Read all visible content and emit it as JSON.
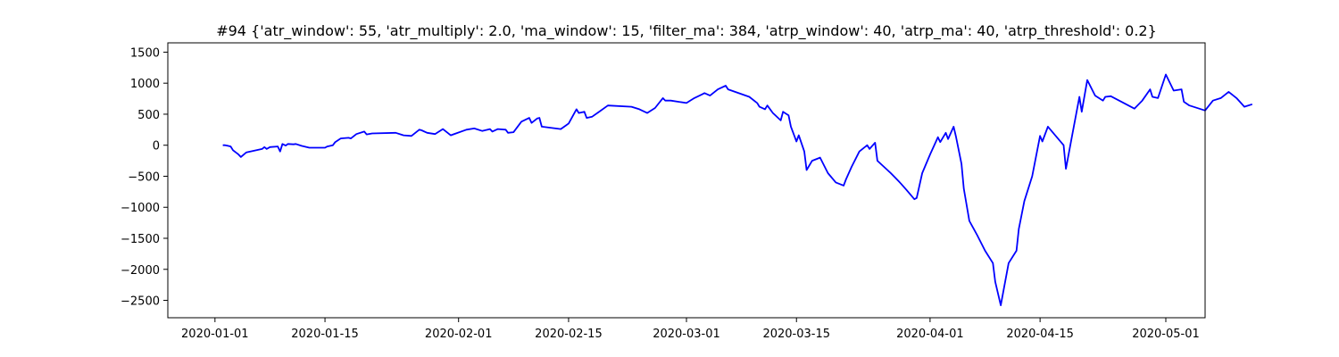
{
  "chart_data": {
    "type": "line",
    "title": "#94 {'atr_window': 55, 'atr_multiply': 2.0, 'ma_window': 15, 'filter_ma': 384, 'atrp_window': 40, 'atrp_ma': 40, 'atrp_threshold': 0.2}",
    "xlabel": "",
    "ylabel": "",
    "x_axis": {
      "type": "date",
      "range": [
        "2019-12-26",
        "2020-05-06"
      ],
      "ticks": [
        "2020-01-01",
        "2020-01-15",
        "2020-02-01",
        "2020-02-15",
        "2020-03-01",
        "2020-03-15",
        "2020-04-01",
        "2020-04-15",
        "2020-05-01"
      ]
    },
    "y_axis": {
      "range": [
        -2780,
        1650
      ],
      "ticks": [
        -2500,
        -2000,
        -1500,
        -1000,
        -500,
        0,
        500,
        1000,
        1500
      ]
    },
    "grid": false,
    "legend": "none",
    "series": [
      {
        "color": "#0000ff",
        "points": [
          [
            "2020-01-02",
            0
          ],
          [
            "2020-01-02",
            0
          ],
          [
            "2020-01-03",
            -20
          ],
          [
            "2020-01-03",
            -80
          ],
          [
            "2020-01-04",
            -150
          ],
          [
            "2020-01-04",
            -190
          ],
          [
            "2020-01-05",
            -115
          ],
          [
            "2020-01-07",
            -60
          ],
          [
            "2020-01-07",
            -30
          ],
          [
            "2020-01-07",
            -60
          ],
          [
            "2020-01-08",
            -30
          ],
          [
            "2020-01-09",
            -20
          ],
          [
            "2020-01-09",
            -100
          ],
          [
            "2020-01-09",
            20
          ],
          [
            "2020-01-10",
            -5
          ],
          [
            "2020-01-10",
            20
          ],
          [
            "2020-01-11",
            15
          ],
          [
            "2020-01-11",
            20
          ],
          [
            "2020-01-12",
            -10
          ],
          [
            "2020-01-13",
            -40
          ],
          [
            "2020-01-14",
            -40
          ],
          [
            "2020-01-15",
            -40
          ],
          [
            "2020-01-15",
            -20
          ],
          [
            "2020-01-16",
            0
          ],
          [
            "2020-01-16",
            50
          ],
          [
            "2020-01-17",
            110
          ],
          [
            "2020-01-18",
            120
          ],
          [
            "2020-01-18",
            110
          ],
          [
            "2020-01-19",
            180
          ],
          [
            "2020-01-20",
            220
          ],
          [
            "2020-01-20",
            175
          ],
          [
            "2020-01-21",
            190
          ],
          [
            "2020-01-24",
            200
          ],
          [
            "2020-01-25",
            160
          ],
          [
            "2020-01-26",
            150
          ],
          [
            "2020-01-27",
            250
          ],
          [
            "2020-01-27",
            240
          ],
          [
            "2020-01-28",
            200
          ],
          [
            "2020-01-29",
            180
          ],
          [
            "2020-01-30",
            260
          ],
          [
            "2020-01-31",
            160
          ],
          [
            "2020-02-02",
            250
          ],
          [
            "2020-02-03",
            270
          ],
          [
            "2020-02-04",
            230
          ],
          [
            "2020-02-05",
            260
          ],
          [
            "2020-02-05",
            220
          ],
          [
            "2020-02-06",
            260
          ],
          [
            "2020-02-07",
            250
          ],
          [
            "2020-02-07",
            200
          ],
          [
            "2020-02-08",
            210
          ],
          [
            "2020-02-09",
            380
          ],
          [
            "2020-02-10",
            440
          ],
          [
            "2020-02-10",
            360
          ],
          [
            "2020-02-11",
            430
          ],
          [
            "2020-02-11",
            440
          ],
          [
            "2020-02-11",
            300
          ],
          [
            "2020-02-14",
            260
          ],
          [
            "2020-02-15",
            350
          ],
          [
            "2020-02-16",
            580
          ],
          [
            "2020-02-16",
            520
          ],
          [
            "2020-02-17",
            540
          ],
          [
            "2020-02-17",
            440
          ],
          [
            "2020-02-18",
            460
          ],
          [
            "2020-02-19",
            550
          ],
          [
            "2020-02-20",
            640
          ],
          [
            "2020-02-23",
            620
          ],
          [
            "2020-02-24",
            580
          ],
          [
            "2020-02-25",
            520
          ],
          [
            "2020-02-26",
            600
          ],
          [
            "2020-02-27",
            760
          ],
          [
            "2020-02-27",
            720
          ],
          [
            "2020-02-28",
            720
          ],
          [
            "2020-03-01",
            680
          ],
          [
            "2020-03-02",
            760
          ],
          [
            "2020-03-03",
            820
          ],
          [
            "2020-03-03",
            840
          ],
          [
            "2020-03-04",
            800
          ],
          [
            "2020-03-05",
            900
          ],
          [
            "2020-03-06",
            960
          ],
          [
            "2020-03-06",
            900
          ],
          [
            "2020-03-09",
            780
          ],
          [
            "2020-03-10",
            680
          ],
          [
            "2020-03-10",
            620
          ],
          [
            "2020-03-11",
            580
          ],
          [
            "2020-03-11",
            640
          ],
          [
            "2020-03-12",
            520
          ],
          [
            "2020-03-13",
            400
          ],
          [
            "2020-03-13",
            540
          ],
          [
            "2020-03-14",
            480
          ],
          [
            "2020-03-14",
            300
          ],
          [
            "2020-03-15",
            60
          ],
          [
            "2020-03-15",
            160
          ],
          [
            "2020-03-16",
            -100
          ],
          [
            "2020-03-16",
            -400
          ],
          [
            "2020-03-17",
            -250
          ],
          [
            "2020-03-18",
            -200
          ],
          [
            "2020-03-19",
            -450
          ],
          [
            "2020-03-20",
            -600
          ],
          [
            "2020-03-21",
            -650
          ],
          [
            "2020-03-21",
            -550
          ],
          [
            "2020-03-22",
            -350
          ],
          [
            "2020-03-23",
            -100
          ],
          [
            "2020-03-24",
            0
          ],
          [
            "2020-03-24",
            -60
          ],
          [
            "2020-03-25",
            40
          ],
          [
            "2020-03-25",
            -250
          ],
          [
            "2020-03-27",
            -450
          ],
          [
            "2020-03-28",
            -580
          ],
          [
            "2020-03-28",
            -620
          ],
          [
            "2020-03-29",
            -720
          ],
          [
            "2020-03-30",
            -870
          ],
          [
            "2020-03-30",
            -850
          ],
          [
            "2020-03-31",
            -450
          ],
          [
            "2020-04-01",
            -150
          ],
          [
            "2020-04-02",
            130
          ],
          [
            "2020-04-02",
            50
          ],
          [
            "2020-04-03",
            200
          ],
          [
            "2020-04-03",
            100
          ],
          [
            "2020-04-04",
            300
          ],
          [
            "2020-04-04",
            140
          ],
          [
            "2020-04-05",
            -300
          ],
          [
            "2020-04-05",
            -700
          ],
          [
            "2020-04-06",
            -1220
          ],
          [
            "2020-04-07",
            -1450
          ],
          [
            "2020-04-08",
            -1700
          ],
          [
            "2020-04-09",
            -1900
          ],
          [
            "2020-04-09",
            -2200
          ],
          [
            "2020-04-10",
            -2580
          ],
          [
            "2020-04-11",
            -1900
          ],
          [
            "2020-04-12",
            -1700
          ],
          [
            "2020-04-12",
            -1350
          ],
          [
            "2020-04-13",
            -900
          ],
          [
            "2020-04-14",
            -500
          ],
          [
            "2020-04-15",
            150
          ],
          [
            "2020-04-15",
            60
          ],
          [
            "2020-04-16",
            300
          ],
          [
            "2020-04-18",
            0
          ],
          [
            "2020-04-18",
            -380
          ],
          [
            "2020-04-19",
            100
          ],
          [
            "2020-04-20",
            780
          ],
          [
            "2020-04-20",
            540
          ],
          [
            "2020-04-21",
            1050
          ],
          [
            "2020-04-22",
            800
          ],
          [
            "2020-04-23",
            720
          ],
          [
            "2020-04-23",
            780
          ],
          [
            "2020-04-24",
            790
          ],
          [
            "2020-04-27",
            590
          ],
          [
            "2020-04-28",
            720
          ],
          [
            "2020-04-29",
            900
          ],
          [
            "2020-04-29",
            780
          ],
          [
            "2020-04-30",
            760
          ],
          [
            "2020-05-01",
            1140
          ],
          [
            "2020-05-02",
            880
          ],
          [
            "2020-05-03",
            900
          ],
          [
            "2020-05-03",
            700
          ],
          [
            "2020-05-04",
            640
          ],
          [
            "2020-05-06",
            560
          ],
          [
            "2020-05-07",
            720
          ],
          [
            "2020-05-08",
            760
          ],
          [
            "2020-05-09",
            860
          ],
          [
            "2020-05-10",
            760
          ],
          [
            "2020-05-11",
            620
          ],
          [
            "2020-05-12",
            660
          ]
        ]
      }
    ]
  }
}
